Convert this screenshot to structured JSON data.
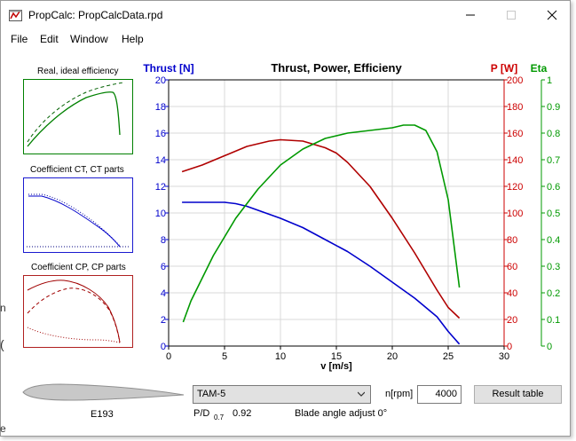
{
  "window": {
    "title": "PropCalc: PropCalcData.rpd"
  },
  "menu": {
    "items": [
      "File",
      "Edit",
      "Window",
      "Help"
    ]
  },
  "thumbnails": [
    {
      "title": "Real, ideal efficiency",
      "border_color": "#008000",
      "title_color": "#000000"
    },
    {
      "title": "Coefficient CT, CT parts",
      "border_color": "#1a1ad0",
      "title_color": "#1a1ad0"
    },
    {
      "title": "Coefficient CP, CP parts",
      "border_color": "#b02020",
      "title_color": "#000000"
    }
  ],
  "chart_data": {
    "type": "line",
    "title": "Thrust, Power, Efficieny",
    "xlabel": "v [m/s]",
    "xlim": [
      0,
      30
    ],
    "x_ticks": [
      0,
      5,
      10,
      15,
      20,
      25,
      30
    ],
    "grid": true,
    "axes": {
      "thrust": {
        "label": "Thrust [N]",
        "side": "left",
        "color": "#0000cc",
        "lim": [
          0,
          20
        ],
        "ticks": [
          0,
          2,
          4,
          6,
          8,
          10,
          12,
          14,
          16,
          18,
          20
        ]
      },
      "power": {
        "label": "P [W]",
        "side": "right",
        "color": "#cc0000",
        "lim": [
          0,
          200
        ],
        "ticks": [
          0,
          20,
          40,
          60,
          80,
          100,
          120,
          140,
          160,
          180,
          200
        ]
      },
      "eta": {
        "label": "Eta",
        "side": "right",
        "color": "#009900",
        "lim": [
          0,
          1
        ],
        "ticks": [
          "0",
          "0.1",
          "0.2",
          "0.3",
          "0.4",
          "0.5",
          "0.6",
          "0.7",
          "0.8",
          "0.9",
          "1"
        ]
      }
    },
    "series": [
      {
        "axis": "thrust",
        "color": "#0000cc",
        "x": [
          1.2,
          3,
          5,
          6,
          7,
          8,
          10,
          12,
          14,
          16,
          18,
          20,
          22,
          24,
          25,
          26
        ],
        "y": [
          10.8,
          10.8,
          10.8,
          10.7,
          10.5,
          10.2,
          9.6,
          8.9,
          8.0,
          7.1,
          6.0,
          4.8,
          3.6,
          2.2,
          1.1,
          0.15
        ]
      },
      {
        "axis": "power",
        "color": "#b00000",
        "x": [
          1.2,
          3,
          5,
          7,
          9,
          10,
          12,
          14,
          15,
          16,
          18,
          20,
          22,
          24,
          25,
          26
        ],
        "y": [
          131,
          136,
          143,
          150,
          154,
          155,
          154,
          149,
          145,
          138,
          120,
          96,
          70,
          42,
          29,
          21
        ]
      },
      {
        "axis": "eta",
        "color": "#009900",
        "x": [
          1.3,
          2,
          4,
          6,
          8,
          10,
          12,
          14,
          16,
          18,
          20,
          21,
          22,
          23,
          24,
          25,
          26
        ],
        "y": [
          0.09,
          0.17,
          0.34,
          0.48,
          0.59,
          0.68,
          0.74,
          0.78,
          0.8,
          0.81,
          0.82,
          0.83,
          0.83,
          0.81,
          0.73,
          0.55,
          0.22
        ]
      }
    ]
  },
  "airfoil": {
    "name": "E193"
  },
  "propeller_select": {
    "value": "TAM-5"
  },
  "rpm": {
    "label": "n[rpm]",
    "value": "4000"
  },
  "result_button": {
    "label": "Result table"
  },
  "pd": {
    "label": "P/D",
    "subscript": "0.7",
    "value": "0.92"
  },
  "blade_angle": {
    "text": "Blade angle adjust 0°"
  },
  "edge_fragments": [
    "n",
    "(",
    "e"
  ]
}
